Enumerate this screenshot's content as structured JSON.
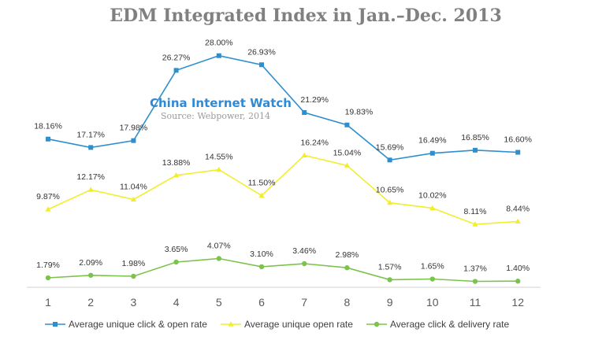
{
  "colors": {
    "series_blue": "#2e8fce",
    "series_yellow": "#f2ee2a",
    "series_green": "#7cc34b",
    "title": "#808080",
    "watermark": "#2e8ad6",
    "source": "#9a9a9a",
    "axis": "#d0d0d0"
  },
  "watermark": {
    "text": "China Internet Watch",
    "source": "Source: Webpower, 2014"
  },
  "chart_data": {
    "type": "line",
    "title": "EDM Integrated Index in Jan.–Dec. 2013",
    "xlabel": "",
    "ylabel": "",
    "x": [
      "1",
      "2",
      "3",
      "4",
      "5",
      "6",
      "7",
      "8",
      "9",
      "10",
      "11",
      "12"
    ],
    "ylim": [
      0,
      30
    ],
    "grid": false,
    "legend_position": "bottom",
    "series": [
      {
        "name": "Average unique click & open rate",
        "color": "#2e8fce",
        "marker": "square",
        "values": [
          18.16,
          17.17,
          17.98,
          26.27,
          28.0,
          26.93,
          21.29,
          19.83,
          15.69,
          16.49,
          16.85,
          16.6
        ],
        "labels": [
          "18.16%",
          "17.17%",
          "17.98%",
          "26.27%",
          "28.00%",
          "26.93%",
          "21.29%",
          "19.83%",
          "15.69%",
          "16.49%",
          "16.85%",
          "16.60%"
        ]
      },
      {
        "name": "Average unique open rate",
        "color": "#f2ee2a",
        "marker": "triangle",
        "values": [
          9.87,
          12.17,
          11.04,
          13.88,
          14.55,
          11.5,
          16.24,
          15.04,
          10.65,
          10.02,
          8.11,
          8.44
        ],
        "labels": [
          "9.87%",
          "12.17%",
          "11.04%",
          "13.88%",
          "14.55%",
          "11.50%",
          "16.24%",
          "15.04%",
          "10.65%",
          "10.02%",
          "8.11%",
          "8.44%"
        ]
      },
      {
        "name": "Average click & delivery rate",
        "color": "#7cc34b",
        "marker": "circle",
        "values": [
          1.79,
          2.09,
          1.98,
          3.65,
          4.07,
          3.1,
          3.46,
          2.98,
          1.57,
          1.65,
          1.37,
          1.4
        ],
        "labels": [
          "1.79%",
          "2.09%",
          "1.98%",
          "3.65%",
          "4.07%",
          "3.10%",
          "3.46%",
          "2.98%",
          "1.57%",
          "1.65%",
          "1.37%",
          "1.40%"
        ]
      }
    ]
  }
}
